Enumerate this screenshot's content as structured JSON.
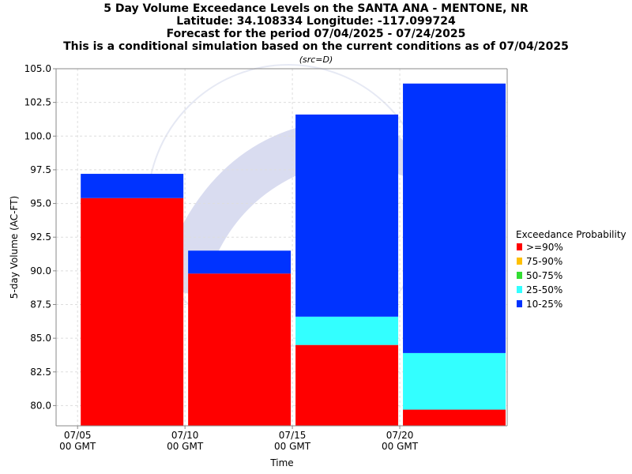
{
  "chart_data": {
    "type": "bar",
    "title_lines": [
      "5 Day Volume Exceedance Levels on the SANTA ANA - MENTONE, NR",
      "Latitude: 34.108334 Longitude: -117.099724",
      "Forecast for the period 07/04/2025 - 07/24/2025",
      "This is a conditional simulation based on the current conditions as of 07/04/2025"
    ],
    "subtitle": "(src=D)",
    "xlabel": "Time",
    "ylabel": "5-day Volume (AC-FT)",
    "ylim": [
      78.5,
      105.0
    ],
    "y_ticks": [
      "80.0",
      "82.5",
      "85.0",
      "87.5",
      "90.0",
      "92.5",
      "95.0",
      "97.5",
      "100.0",
      "102.5",
      "105.0"
    ],
    "x_ticks": [
      {
        "date": "07/05",
        "tz": "00 GMT"
      },
      {
        "date": "07/10",
        "tz": "00 GMT"
      },
      {
        "date": "07/15",
        "tz": "00 GMT"
      },
      {
        "date": "07/20",
        "tz": "00 GMT"
      }
    ],
    "grid": true,
    "legend_position": "right",
    "legend_title": "Exceedance Probability",
    "legend": [
      {
        "name": ">=90%",
        "color": "#ff0000"
      },
      {
        "name": "75-90%",
        "color": "#ffc000"
      },
      {
        "name": "50-75%",
        "color": "#33dd33"
      },
      {
        "name": "25-50%",
        "color": "#33ffff"
      },
      {
        "name": "10-25%",
        "color": "#0033ff"
      }
    ],
    "bars": [
      {
        "start": "07/05",
        "end": "07/10",
        "segments": [
          {
            "name": ">=90%",
            "top": 95.4
          },
          {
            "name": "75-90%",
            "top": 95.4
          },
          {
            "name": "50-75%",
            "top": 95.4
          },
          {
            "name": "25-50%",
            "top": 95.4
          },
          {
            "name": "10-25%",
            "top": 97.2
          }
        ]
      },
      {
        "start": "07/10",
        "end": "07/15",
        "segments": [
          {
            "name": ">=90%",
            "top": 89.8
          },
          {
            "name": "75-90%",
            "top": 89.8
          },
          {
            "name": "50-75%",
            "top": 89.8
          },
          {
            "name": "25-50%",
            "top": 89.8
          },
          {
            "name": "10-25%",
            "top": 91.5
          }
        ]
      },
      {
        "start": "07/15",
        "end": "07/20",
        "segments": [
          {
            "name": ">=90%",
            "top": 84.5
          },
          {
            "name": "75-90%",
            "top": 84.5
          },
          {
            "name": "50-75%",
            "top": 84.5
          },
          {
            "name": "25-50%",
            "top": 86.6
          },
          {
            "name": "10-25%",
            "top": 101.6
          }
        ]
      },
      {
        "start": "07/20",
        "end": "07/25",
        "segments": [
          {
            "name": ">=90%",
            "top": 79.7
          },
          {
            "name": "75-90%",
            "top": 79.7
          },
          {
            "name": "50-75%",
            "top": 79.7
          },
          {
            "name": "25-50%",
            "top": 83.9
          },
          {
            "name": "10-25%",
            "top": 103.9
          }
        ]
      }
    ]
  }
}
